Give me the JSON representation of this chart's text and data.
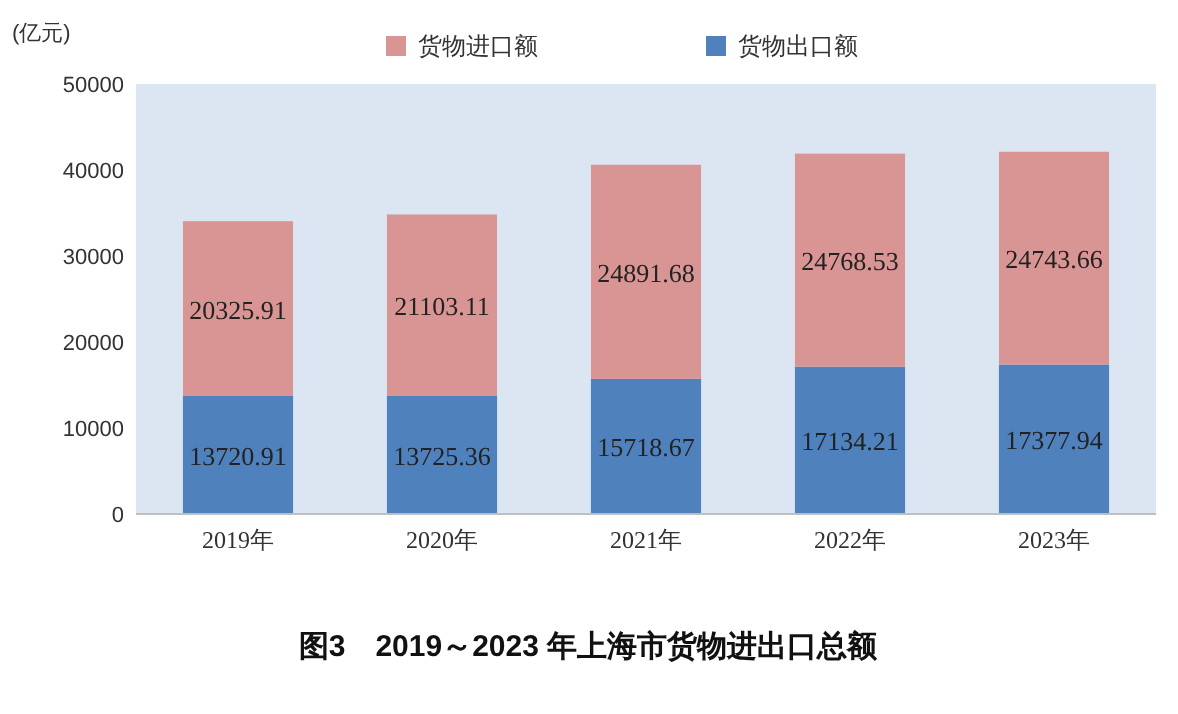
{
  "chart_data": {
    "type": "bar",
    "stacked": true,
    "title": "图3　2019～2023 年上海市货物进出口总额",
    "ylabel": "(亿元)",
    "categories": [
      "2019年",
      "2020年",
      "2021年",
      "2022年",
      "2023年"
    ],
    "series": [
      {
        "name": "货物出口额",
        "color": "#4f81bd",
        "values": [
          13720.91,
          13725.36,
          15718.67,
          17134.21,
          17377.94
        ]
      },
      {
        "name": "货物进口额",
        "color": "#d99594",
        "values": [
          20325.91,
          21103.11,
          24891.68,
          24768.53,
          24743.66
        ]
      }
    ],
    "ylim": [
      0,
      50000
    ],
    "yticks": [
      0,
      10000,
      20000,
      30000,
      40000,
      50000
    ],
    "data_labels": true,
    "legend": "top"
  }
}
